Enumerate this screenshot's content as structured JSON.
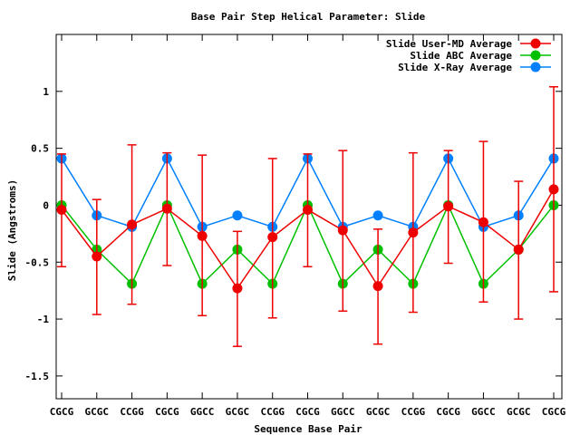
{
  "chart_data": {
    "type": "line",
    "title": "Base Pair Step Helical Parameter: Slide",
    "xlabel": "Sequence Base Pair",
    "ylabel": "Slide (Angstroms)",
    "ylim": [
      -1.7,
      1.5
    ],
    "yticks": [
      -1.5,
      -1,
      -0.5,
      0,
      0.5,
      1
    ],
    "ytick_labels": [
      "-1.5",
      "-1",
      "-0.5",
      "0",
      "0.5",
      "1"
    ],
    "categories": [
      "CGCG",
      "GCGC",
      "CCGG",
      "CGCG",
      "GGCC",
      "GCGC",
      "CCGG",
      "CGCG",
      "GGCC",
      "GCGC",
      "CCGG",
      "CGCG",
      "GGCC",
      "GCGC",
      "CGCG"
    ],
    "legend_position": "top-right",
    "series": [
      {
        "name": "Slide User-MD Average",
        "color": "#ee0000",
        "values": [
          -0.04,
          -0.45,
          -0.17,
          -0.03,
          -0.27,
          -0.73,
          -0.28,
          -0.04,
          -0.22,
          -0.71,
          -0.24,
          -0.01,
          -0.15,
          -0.39,
          0.14
        ],
        "error_low": [
          -0.54,
          -0.96,
          -0.87,
          -0.53,
          -0.97,
          -1.24,
          -0.99,
          -0.54,
          -0.93,
          -1.22,
          -0.94,
          -0.51,
          -0.85,
          -1.0,
          -0.76
        ],
        "error_high": [
          0.45,
          0.05,
          0.53,
          0.46,
          0.44,
          -0.23,
          0.41,
          0.45,
          0.48,
          -0.21,
          0.46,
          0.48,
          0.56,
          0.21,
          1.04
        ]
      },
      {
        "name": "Slide ABC Average",
        "color": "#00c000",
        "values": [
          0.0,
          -0.39,
          -0.69,
          0.0,
          -0.69,
          -0.39,
          -0.69,
          0.0,
          -0.69,
          -0.39,
          -0.69,
          0.0,
          -0.69,
          -0.39,
          0.0
        ]
      },
      {
        "name": "Slide X-Ray Average",
        "color": "#0080ff",
        "values": [
          0.41,
          -0.09,
          -0.19,
          0.41,
          -0.19,
          -0.09,
          -0.19,
          0.41,
          -0.19,
          -0.09,
          -0.19,
          0.41,
          -0.19,
          -0.09,
          0.41
        ]
      }
    ]
  }
}
